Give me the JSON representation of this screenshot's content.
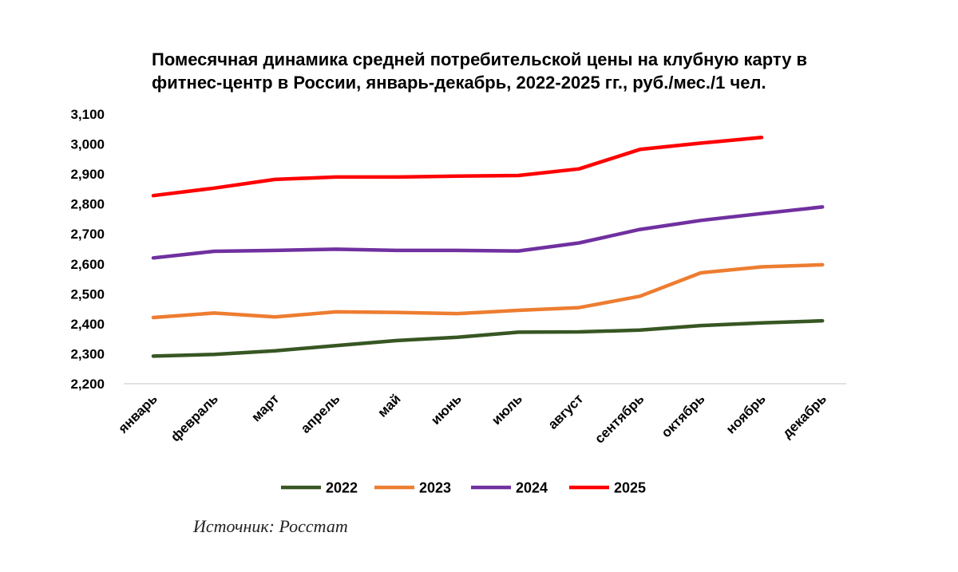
{
  "chart_data": {
    "type": "line",
    "title_lines": [
      "Помесячная динамика средней потребительской цены на клубную карту в",
      "фитнес-центр в России, январь-декабрь, 2022-2025 гг., руб./мес./1 чел."
    ],
    "categories": [
      "январь",
      "февраль",
      "март",
      "апрель",
      "май",
      "июнь",
      "июль",
      "август",
      "сентябрь",
      "октябрь",
      "ноябрь",
      "декабрь"
    ],
    "y_ticks": [
      "2,200",
      "2,300",
      "2,400",
      "2,500",
      "2,600",
      "2,700",
      "2,800",
      "2,900",
      "3,000",
      "3,100"
    ],
    "ylim": [
      2200,
      3100
    ],
    "ytick_step": 100,
    "grid": false,
    "legend_position": "bottom",
    "series": [
      {
        "name": "2022",
        "color": "#375623",
        "values": [
          2292,
          2298,
          2310,
          2327,
          2344,
          2355,
          2372,
          2373,
          2379,
          2394,
          2403,
          2410
        ]
      },
      {
        "name": "2023",
        "color": "#ED7D31",
        "values": [
          2421,
          2436,
          2423,
          2440,
          2438,
          2434,
          2445,
          2454,
          2492,
          2570,
          2590,
          2597
        ]
      },
      {
        "name": "2024",
        "color": "#7030A0",
        "values": [
          2620,
          2642,
          2645,
          2649,
          2645,
          2645,
          2643,
          2670,
          2715,
          2745,
          2768,
          2790
        ]
      },
      {
        "name": "2025",
        "color": "#FF0000",
        "values": [
          2828,
          2853,
          2882,
          2890,
          2890,
          2893,
          2895,
          2917,
          2982,
          3003,
          3022,
          null
        ]
      }
    ]
  },
  "source_note": "Источник: Росстат"
}
